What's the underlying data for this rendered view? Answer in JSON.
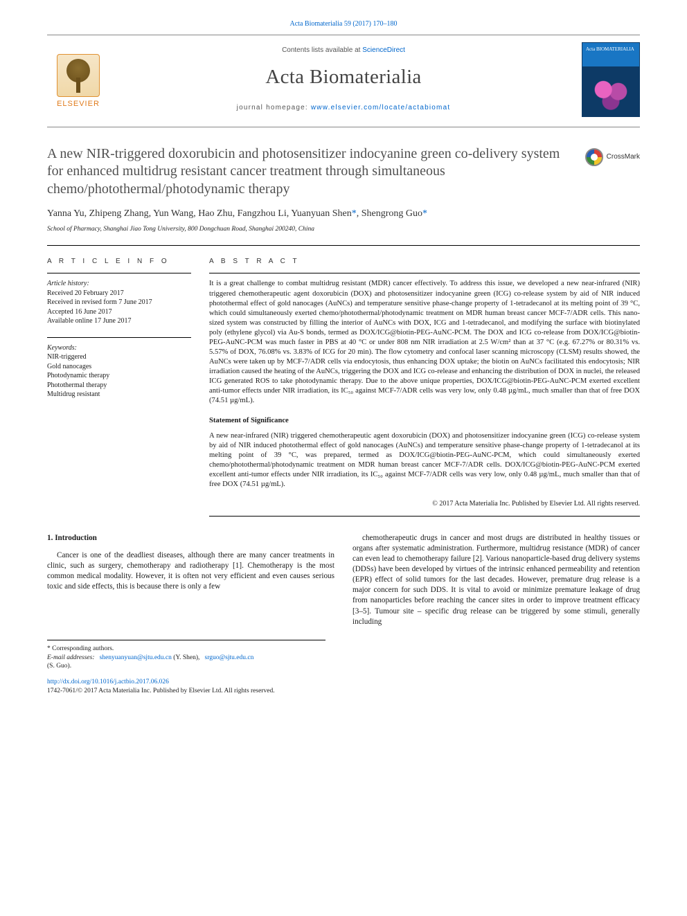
{
  "colors": {
    "link": "#0066cc",
    "text": "#1a1a1a",
    "muted": "#555555",
    "title_gray": "#505050",
    "elsevier_orange": "#e07a1a",
    "border": "#000000",
    "cover_top": "#1976c4",
    "cover_bottom": "#0d3a66"
  },
  "typography": {
    "body_family": "Times New Roman, Georgia, serif",
    "ui_family": "Arial, sans-serif",
    "title_pt": 20,
    "journal_name_pt": 29,
    "body_pt": 11.2,
    "abstract_pt": 10.6,
    "meta_pt": 10,
    "footnote_pt": 9.5
  },
  "page_header": {
    "citation": "Acta Biomaterialia 59 (2017) 170–180"
  },
  "masthead": {
    "contents_prefix": "Contents lists available at ",
    "contents_link": "ScienceDirect",
    "journal_name": "Acta Biomaterialia",
    "homepage_prefix": "journal homepage: ",
    "homepage_url": "www.elsevier.com/locate/actabiomat",
    "publisher_logo_label": "ELSEVIER",
    "cover_title": "Acta BIOMATERIALIA"
  },
  "crossmark": {
    "label": "CrossMark"
  },
  "article": {
    "title": "A new NIR-triggered doxorubicin and photosensitizer indocyanine green co-delivery system for enhanced multidrug resistant cancer treatment through simultaneous chemo/photothermal/photodynamic therapy",
    "authors_line": "Yanna Yu, Zhipeng Zhang, Yun Wang, Hao Zhu, Fangzhou Li, Yuanyuan Shen",
    "authors_corr_1": "*",
    "authors_sep": ", Shengrong Guo",
    "authors_corr_2": "*",
    "affiliation": "School of Pharmacy, Shanghai Jiao Tong University, 800 Dongchuan Road, Shanghai 200240, China"
  },
  "meta": {
    "info_heading": "A R T I C L E   I N F O",
    "history_label": "Article history:",
    "history": [
      "Received 20 February 2017",
      "Received in revised form 7 June 2017",
      "Accepted 16 June 2017",
      "Available online 17 June 2017"
    ],
    "keywords_label": "Keywords:",
    "keywords": [
      "NIR-triggered",
      "Gold nanocages",
      "Photodynamic therapy",
      "Photothermal therapy",
      "Multidrug resistant"
    ]
  },
  "abstract": {
    "heading": "A B S T R A C T",
    "text": "It is a great challenge to combat multidrug resistant (MDR) cancer effectively. To address this issue, we developed a new near-infrared (NIR) triggered chemotherapeutic agent doxorubicin (DOX) and photosensitizer indocyanine green (ICG) co-release system by aid of NIR induced photothermal effect of gold nanocages (AuNCs) and temperature sensitive phase-change property of 1-tetradecanol at its melting point of 39 °C, which could simultaneously exerted chemo/photothermal/photodynamic treatment on MDR human breast cancer MCF-7/ADR cells. This nano-sized system was constructed by filling the interior of AuNCs with DOX, ICG and 1-tetradecanol, and modifying the surface with biotinylated poly (ethylene glycol) via Au-S bonds, termed as DOX/ICG@biotin-PEG-AuNC-PCM. The DOX and ICG co-release from DOX/ICG@biotin-PEG-AuNC-PCM was much faster in PBS at 40 °C or under 808 nm NIR irradiation at 2.5 W/cm² than at 37 °C (e.g. 67.27% or 80.31% vs. 5.57% of DOX, 76.08% vs. 3.83% of ICG for 20 min). The flow cytometry and confocal laser scanning microscopy (CLSM) results showed, the AuNCs were taken up by MCF-7/ADR cells via endocytosis, thus enhancing DOX uptake; the biotin on AuNCs facilitated this endocytosis; NIR irradiation caused the heating of the AuNCs, triggering the DOX and ICG co-release and enhancing the distribution of DOX in nuclei, the released ICG generated ROS to take photodynamic therapy. Due to the above unique properties, DOX/ICG@biotin-PEG-AuNC-PCM exerted excellent anti-tumor effects under NIR irradiation, its IC₅₀ against MCF-7/ADR cells was very low, only 0.48 µg/mL, much smaller than that of free DOX (74.51 µg/mL).",
    "significance_heading": "Statement of Significance",
    "significance_text": "A new near-infrared (NIR) triggered chemotherapeutic agent doxorubicin (DOX) and photosensitizer indocyanine green (ICG) co-release system by aid of NIR induced photothermal effect of gold nanocages (AuNCs) and temperature sensitive phase-change property of 1-tetradecanol at its melting point of 39 °C, was prepared, termed as DOX/ICG@biotin-PEG-AuNC-PCM, which could simultaneously exerted chemo/photothermal/photodynamic treatment on MDR human breast cancer MCF-7/ADR cells. DOX/ICG@biotin-PEG-AuNC-PCM exerted excellent anti-tumor effects under NIR irradiation, its IC₅₀ against MCF-7/ADR cells was very low, only 0.48 µg/mL, much smaller than that of free DOX (74.51 µg/mL).",
    "copyright": "© 2017 Acta Materialia Inc. Published by Elsevier Ltd. All rights reserved."
  },
  "body": {
    "section_heading": "1. Introduction",
    "col1": "Cancer is one of the deadliest diseases, although there are many cancer treatments in clinic, such as surgery, chemotherapy and radiotherapy [1]. Chemotherapy is the most common medical modality. However, it is often not very efficient and even causes serious toxic and side effects, this is because there is only a few",
    "col2": "chemotherapeutic drugs in cancer and most drugs are distributed in healthy tissues or organs after systematic administration. Furthermore, multidrug resistance (MDR) of cancer can even lead to chemotherapy failure [2]. Various nanoparticle-based drug delivery systems (DDSs) have been developed by virtues of the intrinsic enhanced permeability and retention (EPR) effect of solid tumors for the last decades. However, premature drug release is a major concern for such DDS. It is vital to avoid or minimize premature leakage of drug from nanoparticles before reaching the cancer sites in order to improve treatment efficacy [3–5]. Tumour site – specific drug release can be triggered by some stimuli, generally including"
  },
  "footnotes": {
    "corr_label": "* Corresponding authors.",
    "email_label": "E-mail addresses:",
    "email1": "shenyuanyuan@sjtu.edu.cn",
    "email1_who": "(Y. Shen),",
    "email2": "srguo@sjtu.edu.cn",
    "email2_who": "(S. Guo)."
  },
  "footer": {
    "doi": "http://dx.doi.org/10.1016/j.actbio.2017.06.026",
    "issn_line": "1742-7061/© 2017 Acta Materialia Inc. Published by Elsevier Ltd. All rights reserved."
  }
}
